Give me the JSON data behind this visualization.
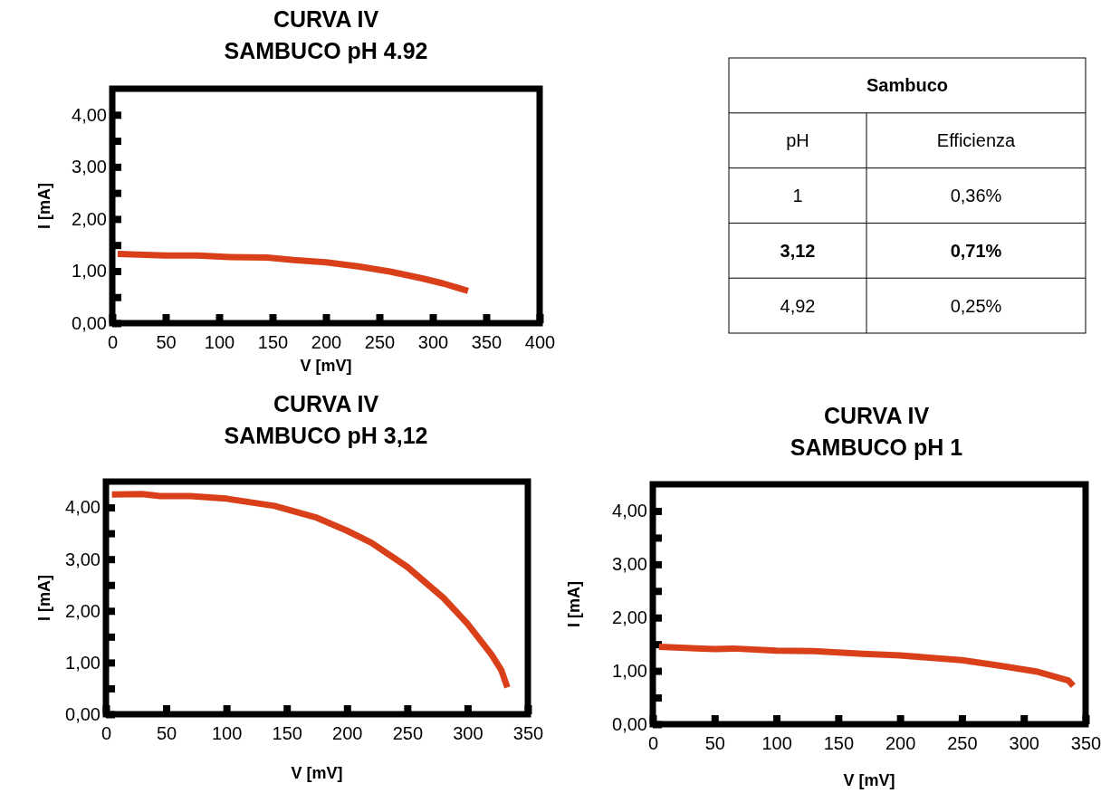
{
  "chart_data": [
    {
      "type": "line",
      "title": "CURVA IV",
      "subtitle": "SAMBUCO pH 4.92",
      "xlabel": "V [mV]",
      "ylabel": "I [mA]",
      "xlim": [
        0,
        400
      ],
      "xticks": [
        0,
        50,
        100,
        150,
        200,
        250,
        300,
        350,
        400
      ],
      "ylim": [
        0,
        4.5
      ],
      "yticks": [
        {
          "value": 0,
          "label": "0,00"
        },
        {
          "value": 0.5,
          "label": null
        },
        {
          "value": 1,
          "label": "1,00"
        },
        {
          "value": 1.5,
          "label": null
        },
        {
          "value": 2,
          "label": "2,00"
        },
        {
          "value": 2.5,
          "label": null
        },
        {
          "value": 3,
          "label": "3,00"
        },
        {
          "value": 3.5,
          "label": null
        },
        {
          "value": 4,
          "label": "4,00"
        }
      ],
      "series": [
        {
          "color": "#d9401a",
          "x": [
            5,
            50,
            80,
            110,
            145,
            170,
            200,
            230,
            260,
            290,
            310,
            333
          ],
          "values": [
            1.33,
            1.3,
            1.3,
            1.27,
            1.26,
            1.21,
            1.17,
            1.09,
            0.99,
            0.86,
            0.76,
            0.62
          ]
        }
      ]
    },
    {
      "type": "other",
      "title": "Sambuco",
      "annotations": [
        "pH",
        "Efficienza",
        "1",
        "0,36%",
        "3,12",
        "0,71%",
        "4,92",
        "0,25%"
      ]
    },
    {
      "type": "line",
      "title": "CURVA IV",
      "subtitle": "SAMBUCO pH 3,12",
      "xlabel": "V [mV]",
      "ylabel": "I [mA]",
      "xlim": [
        0,
        350
      ],
      "xticks": [
        0,
        50,
        100,
        150,
        200,
        250,
        300,
        350
      ],
      "ylim": [
        0,
        4.5
      ],
      "yticks": [
        {
          "value": 0,
          "label": "0,00"
        },
        {
          "value": 0.5,
          "label": null
        },
        {
          "value": 1,
          "label": "1,00"
        },
        {
          "value": 1.5,
          "label": null
        },
        {
          "value": 2,
          "label": "2,00"
        },
        {
          "value": 2.5,
          "label": null
        },
        {
          "value": 3,
          "label": "3,00"
        },
        {
          "value": 3.5,
          "label": null
        },
        {
          "value": 4,
          "label": "4,00"
        }
      ],
      "series": [
        {
          "color": "#d9401a",
          "x": [
            5,
            30,
            45,
            70,
            100,
            140,
            175,
            200,
            220,
            250,
            280,
            300,
            320,
            328,
            333
          ],
          "values": [
            4.25,
            4.26,
            4.22,
            4.22,
            4.17,
            4.03,
            3.8,
            3.55,
            3.32,
            2.85,
            2.25,
            1.75,
            1.15,
            0.85,
            0.52
          ]
        }
      ]
    },
    {
      "type": "line",
      "title": "CURVA IV",
      "subtitle": "SAMBUCO pH 1",
      "xlabel": "V [mV]",
      "ylabel": "I [mA]",
      "xlim": [
        0,
        350
      ],
      "xticks": [
        0,
        50,
        100,
        150,
        200,
        250,
        300,
        350
      ],
      "ylim": [
        0,
        4.5
      ],
      "yticks": [
        {
          "value": 0,
          "label": "0,00"
        },
        {
          "value": 0.5,
          "label": null
        },
        {
          "value": 1,
          "label": "1,00"
        },
        {
          "value": 1.5,
          "label": null
        },
        {
          "value": 2,
          "label": "2,00"
        },
        {
          "value": 2.5,
          "label": null
        },
        {
          "value": 3,
          "label": "3,00"
        },
        {
          "value": 3.5,
          "label": null
        },
        {
          "value": 4,
          "label": "4,00"
        }
      ],
      "series": [
        {
          "color": "#d9401a",
          "x": [
            5,
            50,
            65,
            100,
            130,
            170,
            200,
            250,
            280,
            310,
            330,
            336,
            340
          ],
          "values": [
            1.45,
            1.41,
            1.42,
            1.38,
            1.37,
            1.32,
            1.29,
            1.2,
            1.1,
            0.99,
            0.86,
            0.82,
            0.72
          ]
        }
      ]
    }
  ]
}
